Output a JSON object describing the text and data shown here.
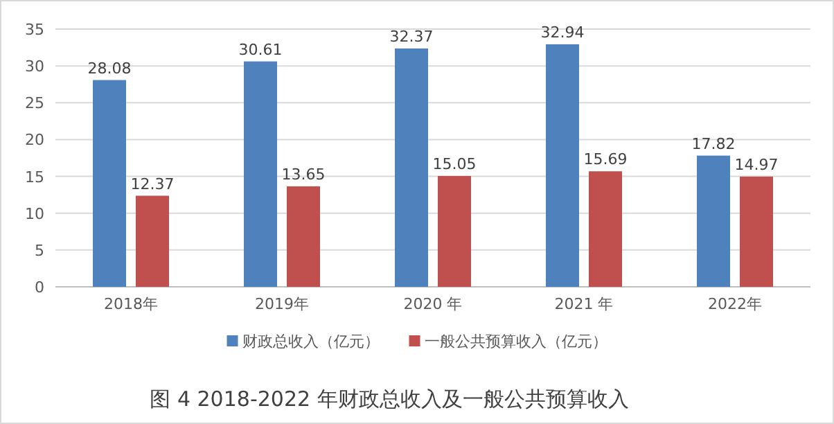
{
  "chart_data": {
    "type": "bar",
    "title": "图 4 2018-2022 年财政总收入及一般公共预算收入",
    "categories": [
      "2018年",
      "2019年",
      "2020 年",
      "2021 年",
      "2022年"
    ],
    "series": [
      {
        "name": "财政总收入（亿元）",
        "color": "#4f81bd",
        "values": [
          28.08,
          30.61,
          32.37,
          32.94,
          17.82
        ]
      },
      {
        "name": "一般公共预算收入（亿元）",
        "color": "#c0504d",
        "values": [
          12.37,
          13.65,
          15.05,
          15.69,
          14.97
        ]
      }
    ],
    "ylim": [
      0,
      35
    ],
    "yticks": [
      0,
      5,
      10,
      15,
      20,
      25,
      30,
      35
    ],
    "grid": "y",
    "legend": "bottom",
    "data_labels": true
  }
}
